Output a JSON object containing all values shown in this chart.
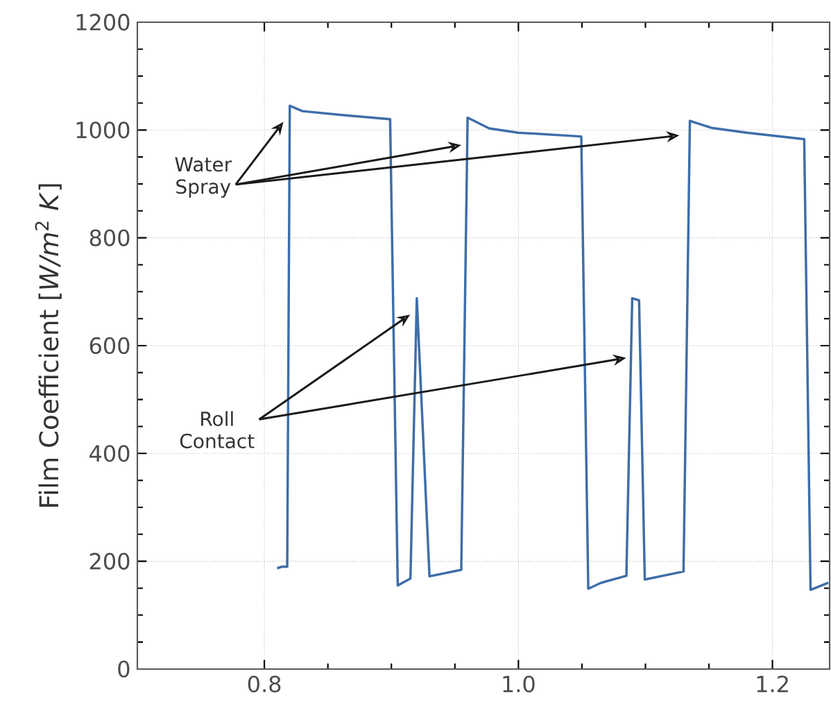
{
  "chart_data": {
    "type": "line",
    "ylabel": "Film Coefficient [*W/m*$^{2}$ *K*]",
    "xlim": [
      0.7,
      1.245
    ],
    "ylim": [
      0,
      1200
    ],
    "xticks": [
      {
        "value": 0.8,
        "label": "0.8"
      },
      {
        "value": 1.0,
        "label": "1.0"
      },
      {
        "value": 1.2,
        "label": "1.2"
      }
    ],
    "yticks": [
      0,
      200,
      400,
      600,
      800,
      1000,
      1200
    ],
    "grid": true,
    "marker": "none",
    "line_style": "solid",
    "series": [
      {
        "color": "#3d6ea8",
        "x": [
          0.81,
          0.814,
          0.818,
          0.82,
          0.83,
          0.86,
          0.899,
          0.905,
          0.915,
          0.92,
          0.93,
          0.955,
          0.96,
          0.977,
          1.0,
          1.0495,
          1.055,
          1.065,
          1.085,
          1.0896,
          1.095,
          1.0995,
          1.13,
          1.135,
          1.152,
          1.18,
          1.225,
          1.23,
          1.244
        ],
        "values": [
          187,
          190,
          190,
          1045,
          1035,
          1028,
          1020,
          155,
          168,
          688,
          172,
          184,
          1023,
          1003,
          995,
          988,
          149,
          160,
          173,
          688,
          684,
          166,
          181,
          1017,
          1004,
          995,
          983,
          147,
          160
        ]
      }
    ],
    "annotations": [
      "Water Spray",
      "Roll Contact"
    ]
  }
}
